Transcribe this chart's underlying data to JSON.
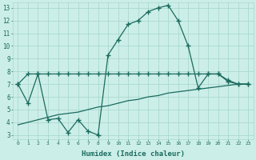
{
  "xlabel": "Humidex (Indice chaleur)",
  "x_upper": [
    0,
    1,
    2,
    3,
    4,
    5,
    6,
    7,
    8,
    9,
    10,
    11,
    12,
    13,
    14,
    15,
    16,
    17,
    18,
    19,
    20,
    21,
    22,
    23
  ],
  "y_upper": [
    7.0,
    5.5,
    7.8,
    4.2,
    4.3,
    3.2,
    4.2,
    3.3,
    3.0,
    9.3,
    10.5,
    11.7,
    12.0,
    12.7,
    13.0,
    13.2,
    12.0,
    10.0,
    6.7,
    7.8,
    7.8,
    7.2,
    7.0,
    7.0
  ],
  "x_flat": [
    0,
    1,
    2,
    3,
    4,
    5,
    6,
    7,
    8,
    9,
    10,
    11,
    12,
    13,
    14,
    15,
    16,
    17,
    18,
    19,
    20,
    21,
    22,
    23
  ],
  "y_flat": [
    7.0,
    7.8,
    7.8,
    7.8,
    7.8,
    7.8,
    7.8,
    7.8,
    7.8,
    7.8,
    7.8,
    7.8,
    7.8,
    7.8,
    7.8,
    7.8,
    7.8,
    7.8,
    7.8,
    7.8,
    7.8,
    7.3,
    7.0,
    7.0
  ],
  "x_trend": [
    0,
    1,
    2,
    3,
    4,
    5,
    6,
    7,
    8,
    9,
    10,
    11,
    12,
    13,
    14,
    15,
    16,
    17,
    18,
    19,
    20,
    21,
    22,
    23
  ],
  "y_trend": [
    3.8,
    4.0,
    4.2,
    4.4,
    4.6,
    4.7,
    4.8,
    5.0,
    5.2,
    5.3,
    5.5,
    5.7,
    5.8,
    6.0,
    6.1,
    6.3,
    6.4,
    6.5,
    6.6,
    6.7,
    6.8,
    6.9,
    7.0,
    7.0
  ],
  "line_color": "#1a6b5e",
  "bg_color": "#cceee8",
  "grid_color": "#aad8d0",
  "ylim_min": 2.7,
  "ylim_max": 13.4,
  "yticks": [
    3,
    4,
    5,
    6,
    7,
    8,
    9,
    10,
    11,
    12,
    13
  ],
  "xtick_labels": [
    "0",
    "1",
    "2",
    "3",
    "4",
    "5",
    "6",
    "7",
    "8",
    "9",
    "10",
    "11",
    "12",
    "13",
    "14",
    "15",
    "16",
    "17",
    "18",
    "19",
    "20",
    "21",
    "22",
    "23"
  ],
  "marker": "+",
  "markersize": 4,
  "linewidth": 0.9
}
